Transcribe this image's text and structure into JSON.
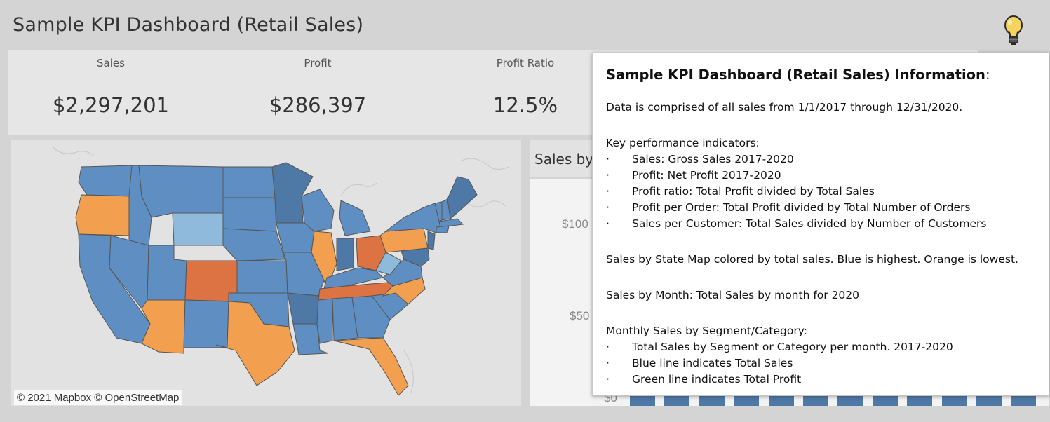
{
  "dashboard": {
    "title": "Sample KPI Dashboard (Retail Sales)",
    "info_icon": "lightbulb-icon"
  },
  "kpis": [
    {
      "label": "Sales",
      "value": "$2,297,201"
    },
    {
      "label": "Profit",
      "value": "$286,397"
    },
    {
      "label": "Profit Ratio",
      "value": "12.5%"
    }
  ],
  "map": {
    "attribution": "© 2021 Mapbox  © OpenStreetMap",
    "colors": {
      "high": "#4e79a7",
      "mid": "#5f8fc2",
      "light": "#8fbadb",
      "low": "#f2a050",
      "lowest": "#dd7243"
    }
  },
  "chart": {
    "title": "Sales by",
    "y_ticks": [
      "$100",
      "$50",
      "$0"
    ],
    "bar_color": "#4e79a7"
  },
  "info_popup": {
    "title": "Sample KPI Dashboard (Retail Sales) Information",
    "title_suffix": ":",
    "data_line": "Data is comprised of all sales from 1/1/2017 through 12/31/2020.",
    "kpi_heading": "Key performance indicators:",
    "bullet_char": "·",
    "kpi_items": [
      "Sales: Gross Sales 2017-2020",
      "Profit: Net Profit 2017-2020",
      "Profit ratio: Total Profit divided by Total Sales",
      "Profit per Order: Total Profit divided by Total Number of Orders",
      "Sales per Customer: Total Sales divided by Number of Customers"
    ],
    "map_line": "Sales by State Map colored by total sales. Blue is highest. Orange is lowest.",
    "month_line": "Sales by Month: Total Sales by month for 2020",
    "segment_heading": "Monthly Sales by Segment/Category:",
    "segment_items": [
      "Total Sales by Segment or Category per month. 2017-2020",
      "Blue line indicates Total Sales",
      "Green line indicates Total Profit"
    ]
  }
}
